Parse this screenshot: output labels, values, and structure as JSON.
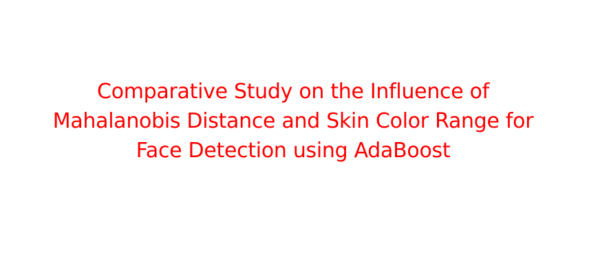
{
  "slide": {
    "title_lines": [
      "Comparative Study on the Influence of",
      "Mahalanobis Distance and Skin Color Range for",
      "Face Detection using AdaBoost"
    ],
    "title_color": "#ff0000",
    "background_color": "#ffffff"
  }
}
